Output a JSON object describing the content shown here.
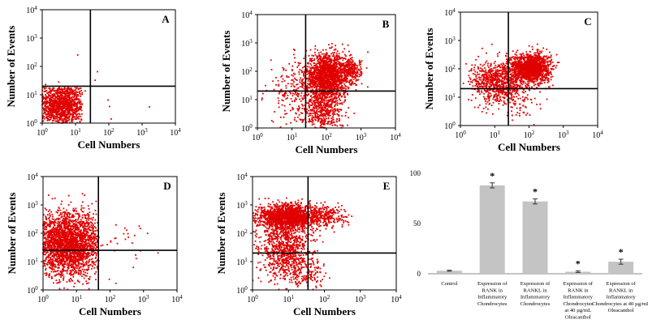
{
  "colors": {
    "dot": "#e00000",
    "bar": "#c4c4c4",
    "axis": "#000000",
    "quad": "#000000"
  },
  "chart_data": [
    {
      "type": "scatter",
      "panel": "A",
      "title": "A",
      "xlabel": "Cell Numbers",
      "ylabel": "Number of Events",
      "xscale": "log",
      "yscale": "log",
      "xlim": [
        1,
        10000
      ],
      "ylim": [
        1,
        10000
      ],
      "x_ticks": [
        {
          "base": "10",
          "exp": "0"
        },
        {
          "base": "10",
          "exp": "1"
        },
        {
          "base": "10",
          "exp": "2"
        },
        {
          "base": "10",
          "exp": "3"
        },
        {
          "base": "10",
          "exp": "4"
        }
      ],
      "y_ticks": [
        {
          "base": "10",
          "exp": "0"
        },
        {
          "base": "10",
          "exp": "1"
        },
        {
          "base": "10",
          "exp": "2"
        },
        {
          "base": "10",
          "exp": "3"
        },
        {
          "base": "10",
          "exp": "4"
        }
      ],
      "gate": {
        "x": 28,
        "y": 20
      },
      "clusters": [
        {
          "cx": 3.5,
          "cy": 4.5,
          "sx": 0.42,
          "sy": 0.42,
          "n": 1500,
          "xmin": 1,
          "xmax": 16,
          "ymin": 1,
          "ymax": 18
        },
        {
          "cx": 30,
          "cy": 12,
          "sx": 1.1,
          "sy": 0.6,
          "n": 20
        }
      ]
    },
    {
      "type": "scatter",
      "panel": "B",
      "title": "B",
      "xlabel": "Cell Numbers",
      "ylabel": "Number of Events",
      "xscale": "log",
      "yscale": "log",
      "xlim": [
        1,
        10000
      ],
      "ylim": [
        1,
        10000
      ],
      "x_ticks": [
        {
          "base": "10",
          "exp": "0"
        },
        {
          "base": "10",
          "exp": "1"
        },
        {
          "base": "10",
          "exp": "2"
        },
        {
          "base": "10",
          "exp": "3"
        },
        {
          "base": "10",
          "exp": "4"
        }
      ],
      "y_ticks": [
        {
          "base": "10",
          "exp": "0"
        },
        {
          "base": "10",
          "exp": "1"
        },
        {
          "base": "10",
          "exp": "2"
        },
        {
          "base": "10",
          "exp": "3"
        },
        {
          "base": "10",
          "exp": "4"
        }
      ],
      "gate": {
        "x": 25,
        "y": 20
      },
      "clusters": [
        {
          "cx": 110,
          "cy": 70,
          "sx": 0.32,
          "sy": 0.38,
          "n": 1600
        },
        {
          "cx": 80,
          "cy": 4,
          "sx": 0.28,
          "sy": 0.45,
          "n": 500
        },
        {
          "cx": 550,
          "cy": 110,
          "sx": 0.14,
          "sy": 0.2,
          "n": 200
        },
        {
          "cx": 25,
          "cy": 18,
          "sx": 0.55,
          "sy": 0.55,
          "n": 350
        }
      ]
    },
    {
      "type": "scatter",
      "panel": "C",
      "title": "C",
      "xlabel": "Cell Numbers",
      "ylabel": "Number of Events",
      "xscale": "log",
      "yscale": "log",
      "xlim": [
        1,
        10000
      ],
      "ylim": [
        1,
        10000
      ],
      "x_ticks": [
        {
          "base": "10",
          "exp": "0"
        },
        {
          "base": "10",
          "exp": "1"
        },
        {
          "base": "10",
          "exp": "2"
        },
        {
          "base": "10",
          "exp": "3"
        },
        {
          "base": "10",
          "exp": "4"
        }
      ],
      "y_ticks": [
        {
          "base": "10",
          "exp": "0"
        },
        {
          "base": "10",
          "exp": "1"
        },
        {
          "base": "10",
          "exp": "2"
        },
        {
          "base": "10",
          "exp": "3"
        },
        {
          "base": "10",
          "exp": "4"
        }
      ],
      "gate": {
        "x": 25,
        "y": 20
      },
      "clusters": [
        {
          "cx": 110,
          "cy": 110,
          "sx": 0.28,
          "sy": 0.25,
          "n": 1500
        },
        {
          "cx": 12,
          "cy": 35,
          "sx": 0.38,
          "sy": 0.35,
          "n": 700
        },
        {
          "cx": 30,
          "cy": 10,
          "sx": 0.4,
          "sy": 0.4,
          "n": 150
        }
      ]
    },
    {
      "type": "scatter",
      "panel": "D",
      "title": "D",
      "xlabel": "Cell Numbers",
      "ylabel": "Number of Events",
      "xscale": "log",
      "yscale": "log",
      "xlim": [
        1,
        10000
      ],
      "ylim": [
        1,
        10000
      ],
      "x_ticks": [
        {
          "base": "10",
          "exp": "0"
        },
        {
          "base": "10",
          "exp": "1"
        },
        {
          "base": "10",
          "exp": "2"
        },
        {
          "base": "10",
          "exp": "3"
        },
        {
          "base": "10",
          "exp": "4"
        }
      ],
      "y_ticks": [
        {
          "base": "10",
          "exp": "0"
        },
        {
          "base": "10",
          "exp": "1"
        },
        {
          "base": "10",
          "exp": "2"
        },
        {
          "base": "10",
          "exp": "3"
        },
        {
          "base": "10",
          "exp": "4"
        }
      ],
      "gate": {
        "x": 45,
        "y": 25
      },
      "clusters": [
        {
          "cx": 6,
          "cy": 40,
          "sx": 0.5,
          "sy": 0.55,
          "n": 2600,
          "xmin": 1,
          "xmax": 45,
          "ymin": 1,
          "ymax": 2500
        },
        {
          "cx": 150,
          "cy": 60,
          "sx": 0.5,
          "sy": 0.5,
          "n": 35
        }
      ]
    },
    {
      "type": "scatter",
      "panel": "E",
      "title": "E",
      "xlabel": "Cell Numbers",
      "ylabel": "Number of Events",
      "xscale": "log",
      "yscale": "log",
      "xlim": [
        1,
        10000
      ],
      "ylim": [
        1,
        10000
      ],
      "x_ticks": [
        {
          "base": "10",
          "exp": "0"
        },
        {
          "base": "10",
          "exp": "1"
        },
        {
          "base": "10",
          "exp": "2"
        },
        {
          "base": "10",
          "exp": "3"
        },
        {
          "base": "10",
          "exp": "4"
        }
      ],
      "y_ticks": [
        {
          "base": "10",
          "exp": "0"
        },
        {
          "base": "10",
          "exp": "1"
        },
        {
          "base": "10",
          "exp": "2"
        },
        {
          "base": "10",
          "exp": "3"
        },
        {
          "base": "10",
          "exp": "4"
        }
      ],
      "gate": {
        "x": 35,
        "y": 20
      },
      "clusters": [
        {
          "cx": 10,
          "cy": 380,
          "sx": 0.42,
          "sy": 0.22,
          "n": 1600
        },
        {
          "cx": 8,
          "cy": 30,
          "sx": 0.35,
          "sy": 0.55,
          "n": 900
        },
        {
          "cx": 110,
          "cy": 400,
          "sx": 0.3,
          "sy": 0.18,
          "n": 250
        },
        {
          "cx": 30,
          "cy": 4,
          "sx": 0.3,
          "sy": 0.35,
          "n": 150
        }
      ]
    },
    {
      "type": "bar",
      "panel": "F",
      "ylim": [
        0,
        100
      ],
      "y_ticks": [
        "0",
        "50",
        "100"
      ],
      "categories": [
        [
          "Control"
        ],
        [
          "Expression of",
          "RANK in",
          "Inflammatory",
          "Chondrocytes"
        ],
        [
          "Expression of",
          "RANKL in",
          "Inflammatory",
          "Chondrocytes"
        ],
        [
          "Expression of",
          "RANK in",
          "Inflammatory",
          "Chondrocytes",
          "at 40 µg/mL",
          "Oleacanthol"
        ],
        [
          "Expression of",
          "RANKL in",
          "Inflammatory",
          "Chondrocytes at 40 µg/mL",
          "Oleacanthol"
        ]
      ],
      "values": [
        3,
        88,
        72,
        2,
        12
      ],
      "errors": [
        0.5,
        2.5,
        2.5,
        0.8,
        2.5
      ],
      "significance": [
        "",
        "*",
        "*",
        "*",
        "*"
      ]
    }
  ]
}
